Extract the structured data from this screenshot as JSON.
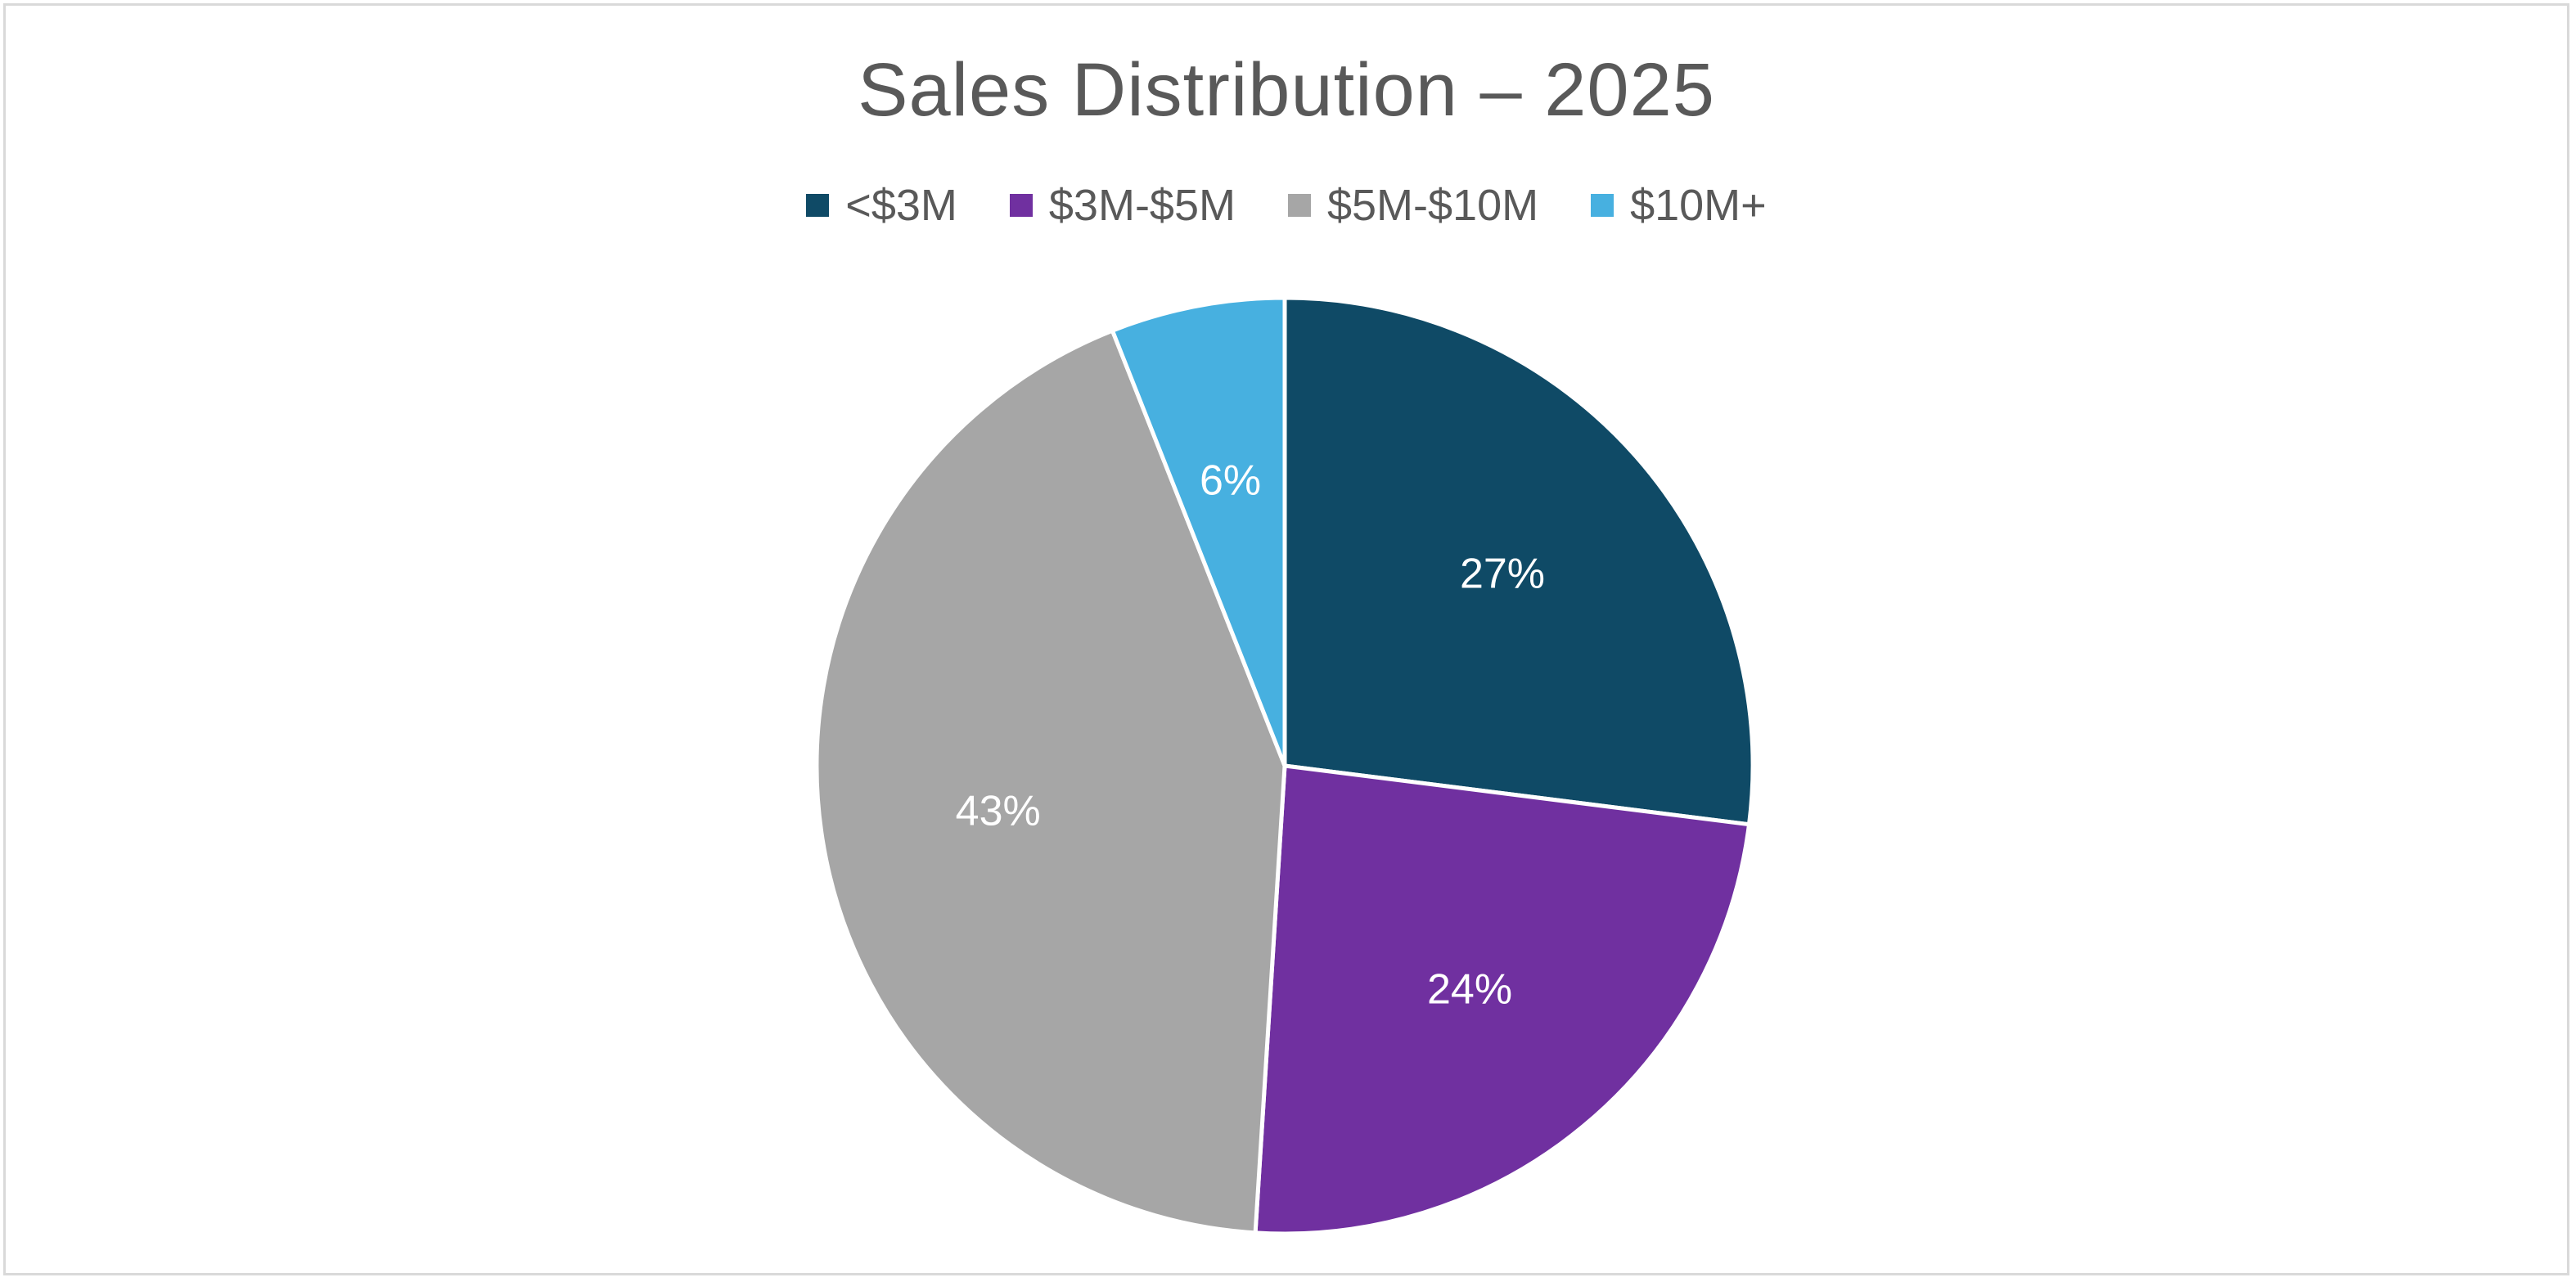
{
  "chart_data": {
    "type": "pie",
    "title": "Sales Distribution – 2025",
    "legend_position": "top",
    "slices": [
      {
        "name": "<$3M",
        "value": 27,
        "label": "27%",
        "color": "#0f4a66"
      },
      {
        "name": "$3M-$5M",
        "value": 24,
        "label": "24%",
        "color": "#7030a0"
      },
      {
        "name": "$5M-$10M",
        "value": 43,
        "label": "43%",
        "color": "#a6a6a6"
      },
      {
        "name": "$10M+",
        "value": 6,
        "label": "6%",
        "color": "#47b0e0"
      }
    ]
  }
}
